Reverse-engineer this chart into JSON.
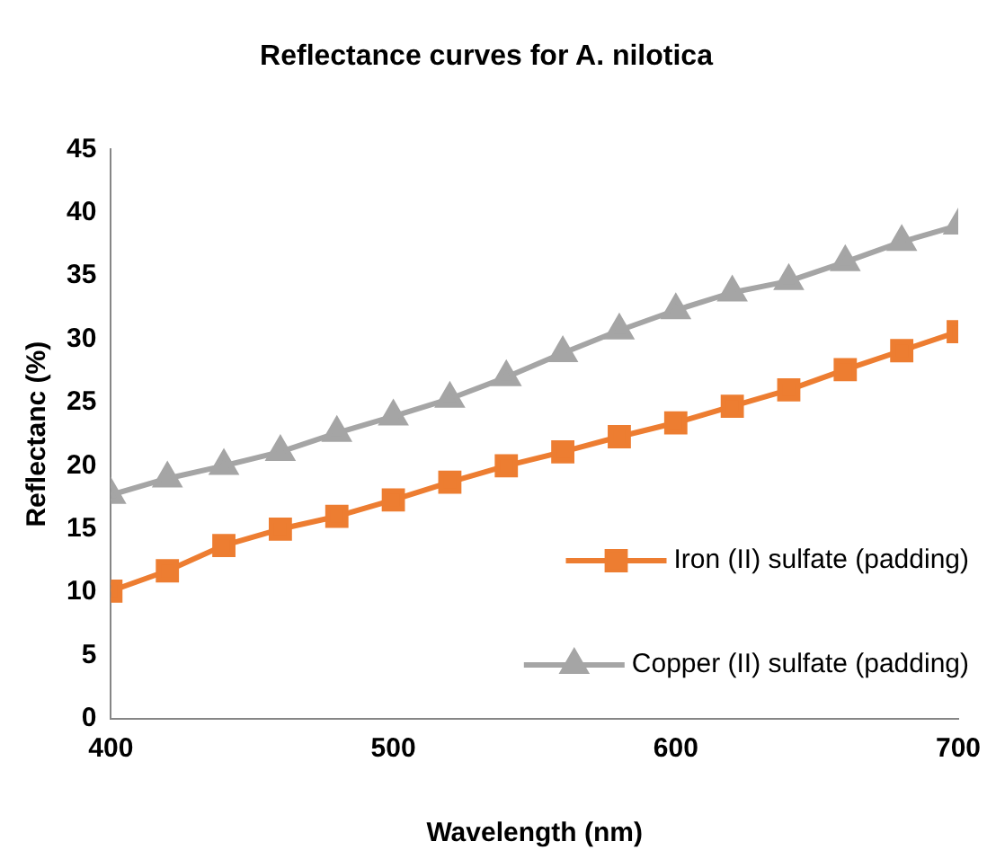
{
  "chart_data": {
    "type": "line",
    "title": "Reflectance curves for A. nilotica",
    "xlabel": "Wavelength (nm)",
    "ylabel": "Reflectanc (%)",
    "x": [
      400,
      420,
      440,
      460,
      480,
      500,
      520,
      540,
      560,
      580,
      600,
      620,
      640,
      660,
      680,
      700
    ],
    "series": [
      {
        "name": "Iron (II) sulfate (padding)",
        "color": "#ed7d31",
        "marker": "square",
        "values": [
          10.1,
          11.7,
          13.7,
          15.0,
          16.0,
          17.3,
          18.7,
          20.0,
          21.1,
          22.3,
          23.4,
          24.7,
          26.0,
          27.6,
          29.1,
          30.6
        ]
      },
      {
        "name": "Copper (II) sulfate (padding)",
        "color": "#a5a5a5",
        "marker": "triangle",
        "values": [
          17.7,
          19.0,
          20.0,
          21.1,
          22.6,
          23.9,
          25.3,
          27.0,
          28.9,
          30.7,
          32.3,
          33.7,
          34.6,
          36.1,
          37.7,
          39.0
        ]
      }
    ],
    "xlim": [
      400,
      700
    ],
    "xticks": [
      400,
      500,
      600,
      700
    ],
    "ylim": [
      0,
      45
    ],
    "yticks": [
      0,
      5,
      10,
      15,
      20,
      25,
      30,
      35,
      40,
      45
    ],
    "grid": false,
    "legend": "bottom right",
    "line_style": "solid"
  }
}
